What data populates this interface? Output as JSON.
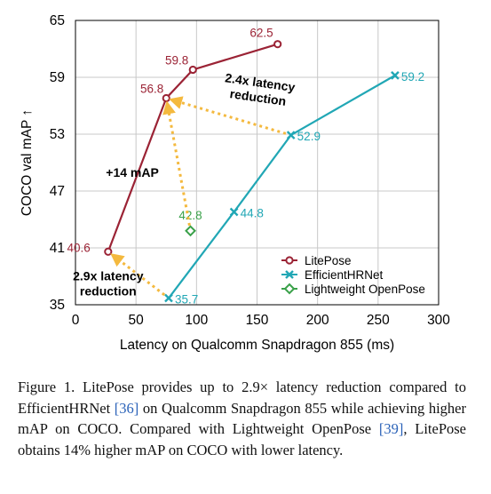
{
  "chart_data": {
    "type": "line",
    "xlabel": "Latency on Qualcomm Snapdragon 855 (ms)",
    "ylabel": "COCO val mAP ↑",
    "xlim": [
      0,
      300
    ],
    "ylim": [
      35,
      65
    ],
    "xticks": [
      0,
      50,
      100,
      150,
      200,
      250,
      300
    ],
    "yticks": [
      35,
      41,
      47,
      53,
      59,
      65
    ],
    "grid": true,
    "legend_position": "bottom-right",
    "series": [
      {
        "name": "LitePose",
        "color": "#9b2335",
        "marker": "circle",
        "points": [
          {
            "x": 27,
            "y": 40.6,
            "label": "40.6"
          },
          {
            "x": 75,
            "y": 56.8,
            "label": "56.8"
          },
          {
            "x": 97,
            "y": 59.8,
            "label": "59.8"
          },
          {
            "x": 167,
            "y": 62.5,
            "label": "62.5"
          }
        ]
      },
      {
        "name": "EfficientHRNet",
        "color": "#21a7b5",
        "marker": "x",
        "points": [
          {
            "x": 77,
            "y": 35.7,
            "label": "35.7"
          },
          {
            "x": 131,
            "y": 44.8,
            "label": "44.8"
          },
          {
            "x": 178,
            "y": 52.9,
            "label": "52.9"
          },
          {
            "x": 264,
            "y": 59.2,
            "label": "59.2"
          }
        ]
      },
      {
        "name": "Lightweight OpenPose",
        "color": "#3aa14a",
        "marker": "diamond",
        "points": [
          {
            "x": 95,
            "y": 42.8,
            "label": "42.8"
          }
        ]
      }
    ],
    "annotations": [
      {
        "text": "2.4x latency\nreduction",
        "arrow_from": [
          178,
          52.9
        ],
        "arrow_to": [
          75,
          56.8
        ]
      },
      {
        "text": "+14 mAP",
        "arrow_from": [
          95,
          42.8
        ],
        "arrow_to": [
          75,
          56.8
        ]
      },
      {
        "text": "2.9x latency\nreduction",
        "arrow_from": [
          77,
          35.7
        ],
        "arrow_to": [
          27,
          40.6
        ]
      }
    ],
    "annotation_color": "#f4b93e"
  },
  "caption": {
    "prefix": "Figure 1.  LitePose provides up to 2.9× latency reduction compared to EfficientHRNet ",
    "ref1": "[36]",
    "middle": " on Qualcomm Snapdragon 855 while achieving higher mAP on COCO. Compared with Lightweight OpenPose ",
    "ref2": "[39]",
    "suffix": ", LitePose obtains 14% higher mAP on COCO with lower latency."
  }
}
